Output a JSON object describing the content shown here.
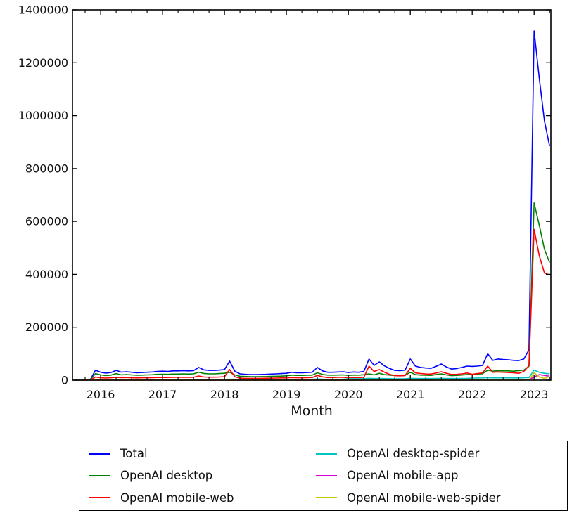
{
  "chart_data": {
    "type": "line",
    "title": "",
    "xlabel": "Month",
    "ylabel": "",
    "grid": false,
    "legend_position": "bottom",
    "x_domain": [
      2015.545,
      2023.27
    ],
    "ylim": [
      0,
      1400000
    ],
    "x_tick_labels": [
      "2016",
      "2017",
      "2018",
      "2019",
      "2020",
      "2021",
      "2022",
      "2023"
    ],
    "x_tick_values": [
      2016,
      2017,
      2018,
      2019,
      2020,
      2021,
      2022,
      2023
    ],
    "x_minor_tick_step": 0.25,
    "y_tick_labels": [
      "0",
      "200000",
      "400000",
      "600000",
      "800000",
      "1000000",
      "1200000",
      "1400000"
    ],
    "y_tick_values": [
      0,
      200000,
      400000,
      600000,
      800000,
      1000000,
      1200000,
      1400000
    ],
    "months": [
      "2015-08",
      "2015-09",
      "2015-10",
      "2015-11",
      "2015-12",
      "2016-01",
      "2016-02",
      "2016-03",
      "2016-04",
      "2016-05",
      "2016-06",
      "2016-07",
      "2016-08",
      "2016-09",
      "2016-10",
      "2016-11",
      "2016-12",
      "2017-01",
      "2017-02",
      "2017-03",
      "2017-04",
      "2017-05",
      "2017-06",
      "2017-07",
      "2017-08",
      "2017-09",
      "2017-10",
      "2017-11",
      "2017-12",
      "2018-01",
      "2018-02",
      "2018-03",
      "2018-04",
      "2018-05",
      "2018-06",
      "2018-07",
      "2018-08",
      "2018-09",
      "2018-10",
      "2018-11",
      "2018-12",
      "2019-01",
      "2019-02",
      "2019-03",
      "2019-04",
      "2019-05",
      "2019-06",
      "2019-07",
      "2019-08",
      "2019-09",
      "2019-10",
      "2019-11",
      "2019-12",
      "2020-01",
      "2020-02",
      "2020-03",
      "2020-04",
      "2020-05",
      "2020-06",
      "2020-07",
      "2020-08",
      "2020-09",
      "2020-10",
      "2020-11",
      "2020-12",
      "2021-01",
      "2021-02",
      "2021-03",
      "2021-04",
      "2021-05",
      "2021-06",
      "2021-07",
      "2021-08",
      "2021-09",
      "2021-10",
      "2021-11",
      "2021-12",
      "2022-01",
      "2022-02",
      "2022-03",
      "2022-04",
      "2022-05",
      "2022-06",
      "2022-07",
      "2022-08",
      "2022-09",
      "2022-10",
      "2022-11",
      "2022-12",
      "2023-01",
      "2023-02",
      "2023-03",
      "2023-04"
    ],
    "series": [
      {
        "name": "Total",
        "color": "#0000ff",
        "values": [
          400,
          450,
          550,
          2000,
          38000,
          30000,
          26500,
          29000,
          37000,
          30500,
          32000,
          30000,
          28000,
          29000,
          30000,
          31000,
          33000,
          34000,
          33000,
          35000,
          35000,
          36000,
          35000,
          36000,
          48000,
          39000,
          37000,
          37000,
          38000,
          40000,
          72000,
          34000,
          24000,
          22000,
          21000,
          21000,
          21500,
          22000,
          23000,
          24000,
          25000,
          26000,
          30000,
          28000,
          28000,
          29000,
          30000,
          48000,
          35000,
          30000,
          30000,
          31000,
          32000,
          29000,
          31000,
          30000,
          33000,
          80000,
          56000,
          69000,
          54000,
          44000,
          37000,
          36000,
          38000,
          80000,
          53000,
          48000,
          46000,
          45000,
          52000,
          61000,
          50000,
          42000,
          44000,
          48000,
          53000,
          52000,
          53000,
          56000,
          100000,
          75000,
          80000,
          78000,
          77000,
          75000,
          74000,
          80000,
          115000,
          1320000,
          1140000,
          980000,
          885000
        ]
      },
      {
        "name": "OpenAI desktop",
        "color": "#008000",
        "values": [
          250,
          280,
          340,
          1300,
          25000,
          20000,
          17500,
          19000,
          25000,
          20000,
          21000,
          20000,
          18500,
          19000,
          20000,
          20500,
          22000,
          22500,
          22000,
          23000,
          23000,
          24000,
          23000,
          24000,
          30000,
          25500,
          24000,
          24000,
          25000,
          26000,
          30000,
          20000,
          15000,
          14000,
          13000,
          13000,
          13500,
          13500,
          14500,
          15000,
          15500,
          16500,
          19000,
          18000,
          18000,
          18500,
          19000,
          28000,
          21500,
          19000,
          19000,
          19500,
          20000,
          18000,
          19500,
          19000,
          20500,
          24000,
          20000,
          26000,
          21000,
          19000,
          17500,
          17000,
          18000,
          30000,
          21000,
          19000,
          18500,
          18000,
          21000,
          24000,
          20000,
          17000,
          18000,
          19500,
          21500,
          21000,
          23000,
          24500,
          38000,
          34000,
          36000,
          35000,
          35000,
          34000,
          36000,
          38000,
          52000,
          670000,
          585000,
          495000,
          445000
        ]
      },
      {
        "name": "OpenAI mobile-web",
        "color": "#ff0000",
        "values": [
          130,
          150,
          180,
          600,
          12000,
          9000,
          8000,
          9000,
          11000,
          9300,
          10000,
          9000,
          8500,
          9000,
          9000,
          9500,
          10000,
          10000,
          10000,
          10500,
          10500,
          11000,
          10500,
          11000,
          16000,
          12000,
          11500,
          11500,
          12000,
          13000,
          40000,
          13000,
          8000,
          7000,
          7000,
          7000,
          7000,
          7500,
          7500,
          8000,
          8500,
          8500,
          10000,
          9000,
          9000,
          9500,
          10000,
          18000,
          12500,
          10000,
          10000,
          10500,
          11000,
          9500,
          10000,
          9800,
          11000,
          53000,
          33000,
          40000,
          30000,
          22000,
          17000,
          16500,
          17500,
          45000,
          28000,
          25000,
          23500,
          23000,
          27000,
          32000,
          26000,
          21500,
          22000,
          24000,
          27000,
          22000,
          25000,
          27000,
          53000,
          30000,
          31000,
          30000,
          29000,
          28000,
          26000,
          33000,
          55000,
          570000,
          470000,
          405000,
          398000
        ]
      },
      {
        "name": "OpenAI desktop-spider",
        "color": "#00c4c4",
        "values": [
          10,
          10,
          15,
          60,
          400,
          900,
          800,
          900,
          1100,
          950,
          1000,
          950,
          900,
          950,
          1000,
          1000,
          1050,
          1400,
          1400,
          1500,
          1500,
          1600,
          1500,
          1600,
          1900,
          1700,
          1600,
          1600,
          1700,
          2500,
          3500,
          2500,
          2000,
          1900,
          1800,
          1800,
          1900,
          1900,
          2000,
          2100,
          2200,
          3000,
          3500,
          3200,
          3200,
          3300,
          3500,
          4500,
          3800,
          3400,
          3400,
          3500,
          3600,
          5000,
          5500,
          5200,
          5800,
          7000,
          6000,
          6500,
          6000,
          5500,
          5200,
          5200,
          5500,
          7000,
          6500,
          6200,
          6000,
          6000,
          6500,
          7000,
          6500,
          6000,
          6200,
          6500,
          7000,
          8000,
          8200,
          8500,
          9500,
          8800,
          9000,
          8800,
          8800,
          8600,
          8500,
          9000,
          10000,
          38000,
          30000,
          26000,
          24000
        ]
      },
      {
        "name": "OpenAI mobile-app",
        "color": "#d400d4",
        "values": [
          5,
          6,
          8,
          25,
          300,
          250,
          220,
          240,
          300,
          250,
          260,
          250,
          230,
          240,
          250,
          255,
          270,
          280,
          270,
          285,
          285,
          295,
          285,
          295,
          390,
          320,
          300,
          300,
          310,
          330,
          580,
          330,
          200,
          180,
          170,
          170,
          175,
          180,
          190,
          195,
          205,
          215,
          245,
          230,
          230,
          240,
          245,
          390,
          285,
          245,
          245,
          255,
          260,
          240,
          255,
          245,
          270,
          650,
          460,
          560,
          440,
          360,
          300,
          295,
          310,
          650,
          430,
          390,
          375,
          365,
          425,
          500,
          410,
          340,
          360,
          390,
          430,
          390,
          430,
          455,
          810,
          610,
          650,
          635,
          625,
          610,
          600,
          650,
          2000,
          12000,
          21000,
          18000,
          15000
        ]
      },
      {
        "name": "OpenAI mobile-web-spider",
        "color": "#c8c800",
        "values": [
          5,
          5,
          7,
          20,
          300,
          240,
          210,
          230,
          290,
          240,
          250,
          240,
          225,
          230,
          240,
          245,
          260,
          270,
          260,
          275,
          275,
          285,
          275,
          285,
          380,
          310,
          290,
          290,
          300,
          320,
          560,
          320,
          195,
          175,
          165,
          165,
          170,
          175,
          185,
          190,
          200,
          210,
          240,
          225,
          225,
          235,
          240,
          380,
          280,
          240,
          240,
          250,
          255,
          235,
          250,
          240,
          265,
          640,
          450,
          550,
          430,
          350,
          295,
          290,
          305,
          640,
          420,
          380,
          365,
          355,
          415,
          490,
          400,
          330,
          350,
          380,
          420,
          380,
          420,
          445,
          800,
          600,
          640,
          625,
          615,
          600,
          590,
          640,
          1000,
          28000,
          12000,
          7000,
          14000
        ]
      }
    ]
  },
  "legend": {
    "note": "labels bound from chart_data.series names"
  }
}
